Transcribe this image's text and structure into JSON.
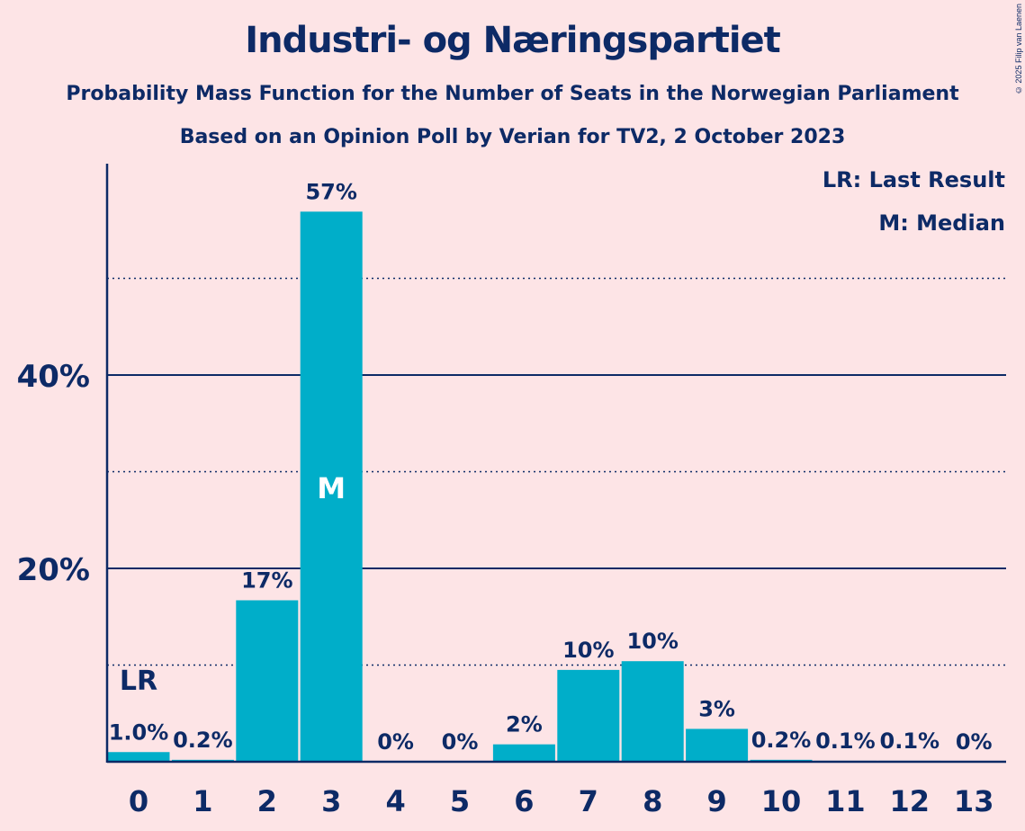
{
  "title": "Industri- og Næringspartiet",
  "subtitle1": "Probability Mass Function for the Number of Seats in the Norwegian Parliament",
  "subtitle2": "Based on an Opinion Poll by Verian for TV2, 2 October 2023",
  "copyright": "© 2025 Filip van Laenen",
  "legend": {
    "last_result": "LR: Last Result",
    "median": "M: Median"
  },
  "colors": {
    "background": "#fde4e6",
    "bar": "#00aec9",
    "text": "#0d2a66"
  },
  "chart_data": {
    "type": "bar",
    "categories": [
      "0",
      "1",
      "2",
      "3",
      "4",
      "5",
      "6",
      "7",
      "8",
      "9",
      "10",
      "11",
      "12",
      "13"
    ],
    "values": [
      1.0,
      0.2,
      16.7,
      56.9,
      0.0,
      0.0,
      1.8,
      9.5,
      10.4,
      3.4,
      0.2,
      0.1,
      0.1,
      0.0
    ],
    "data_labels": [
      "1.0%",
      "0.2%",
      "17%",
      "57%",
      "0%",
      "0%",
      "2%",
      "10%",
      "10%",
      "3%",
      "0.2%",
      "0.1%",
      "0.1%",
      "0%"
    ],
    "ylim": [
      0,
      62
    ],
    "yticks": [
      20,
      40
    ],
    "ytick_labels": [
      "20%",
      "40%"
    ],
    "minor_gridlines": [
      10,
      30,
      50
    ],
    "last_result_index": 0,
    "last_result_label": "LR",
    "median_index": 3,
    "median_label": "M",
    "legend_position": "top-right"
  }
}
